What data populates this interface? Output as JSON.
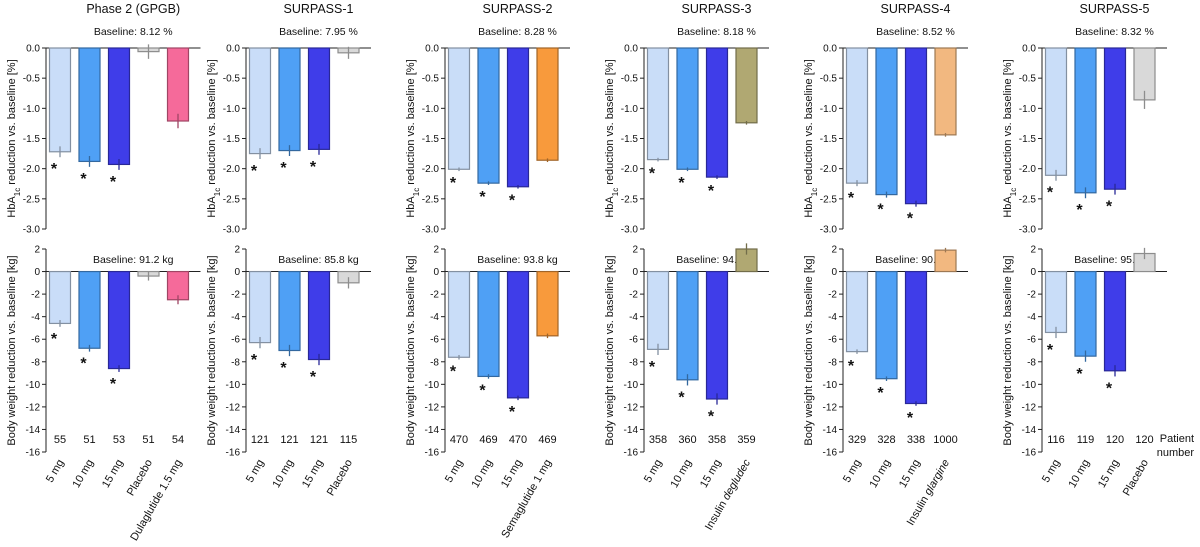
{
  "colors": {
    "tzp_5mg": "#c9ddf8",
    "tzp_10mg": "#4fa0f5",
    "tzp_15mg": "#3f3de9",
    "placebo": "#d9d9d9",
    "dulaglutide": "#f56a9a",
    "semaglutide": "#f89a3c",
    "degludec": "#b0a872",
    "glargine": "#f2b880"
  },
  "tick_labels": {
    "hba1c": [
      "0.0",
      "-0.5",
      "-1.0",
      "-1.5",
      "-2.0",
      "-2.5",
      "-3.0"
    ],
    "weight": [
      "2",
      "0",
      "-2",
      "-4",
      "-6",
      "-8",
      "-10",
      "-12",
      "-14",
      "-16"
    ]
  },
  "y_labels": {
    "hba1c_prefix": "HbA",
    "hba1c_sub": "1c",
    "hba1c_suffix": " reduction vs. baseline [%]",
    "weight": "Body weight reduction vs. baseline [kg]"
  },
  "patient_number_label": [
    "Patient",
    "number"
  ],
  "significance_marker": "*",
  "chart_data": [
    {
      "type": "bar",
      "title": "Phase 2 (GPGB)",
      "categories": [
        "5 mg",
        "10 mg",
        "15 mg",
        "Placebo",
        "Dulaglutide 1.5 mg"
      ],
      "category_colors": [
        "tzp_5mg",
        "tzp_10mg",
        "tzp_15mg",
        "placebo",
        "dulaglutide"
      ],
      "significant": [
        true,
        true,
        true,
        false,
        false
      ],
      "patient_numbers": [
        "55",
        "51",
        "53",
        "51",
        "54"
      ],
      "hba1c": {
        "baseline": "Baseline: 8.12 %",
        "values": [
          -1.72,
          -1.88,
          -1.93,
          -0.06,
          -1.21
        ],
        "errors": [
          0.09,
          0.09,
          0.09,
          0.12,
          0.12
        ],
        "ylim": [
          -3.0,
          0.0
        ]
      },
      "weight": {
        "baseline": "Baseline: 91.2 kg",
        "values": [
          -4.6,
          -6.8,
          -8.6,
          -0.4,
          -2.5
        ],
        "errors": [
          0.3,
          0.3,
          0.3,
          0.4,
          0.4
        ],
        "ylim": [
          -16,
          2
        ]
      }
    },
    {
      "type": "bar",
      "title": "SURPASS-1",
      "categories": [
        "5 mg",
        "10 mg",
        "15 mg",
        "Placebo"
      ],
      "category_colors": [
        "tzp_5mg",
        "tzp_10mg",
        "tzp_15mg",
        "placebo"
      ],
      "significant": [
        true,
        true,
        true,
        false
      ],
      "patient_numbers": [
        "121",
        "121",
        "121",
        "115"
      ],
      "hba1c": {
        "baseline": "Baseline: 7.95 %",
        "values": [
          -1.75,
          -1.7,
          -1.68,
          -0.08
        ],
        "errors": [
          0.09,
          0.09,
          0.09,
          0.1
        ],
        "ylim": [
          -3.0,
          0.0
        ]
      },
      "weight": {
        "baseline": "Baseline: 85.8 kg",
        "values": [
          -6.3,
          -7.0,
          -7.8,
          -1.0
        ],
        "errors": [
          0.5,
          0.5,
          0.5,
          0.5
        ],
        "ylim": [
          -16,
          2
        ]
      }
    },
    {
      "type": "bar",
      "title": "SURPASS-2",
      "categories": [
        "5 mg",
        "10 mg",
        "15 mg",
        "Semaglutide 1 mg"
      ],
      "category_colors": [
        "tzp_5mg",
        "tzp_10mg",
        "tzp_15mg",
        "semaglutide"
      ],
      "significant": [
        true,
        true,
        true,
        false
      ],
      "patient_numbers": [
        "470",
        "469",
        "470",
        "469"
      ],
      "hba1c": {
        "baseline": "Baseline: 8.28 %",
        "values": [
          -2.01,
          -2.24,
          -2.3,
          -1.86
        ],
        "errors": [
          0.03,
          0.03,
          0.03,
          0.03
        ],
        "ylim": [
          -3.0,
          0.0
        ]
      },
      "weight": {
        "baseline": "Baseline: 93.8 kg",
        "values": [
          -7.6,
          -9.3,
          -11.2,
          -5.7
        ],
        "errors": [
          0.2,
          0.2,
          0.2,
          0.2
        ],
        "ylim": [
          -16,
          2
        ]
      }
    },
    {
      "type": "bar",
      "title": "SURPASS-3",
      "categories": [
        "5 mg",
        "10 mg",
        "15 mg",
        "Insulin degludec"
      ],
      "category_colors": [
        "tzp_5mg",
        "tzp_10mg",
        "tzp_15mg",
        "degludec"
      ],
      "italic_from": [
        null,
        null,
        null,
        8
      ],
      "significant": [
        true,
        true,
        true,
        false
      ],
      "patient_numbers": [
        "358",
        "360",
        "358",
        "359"
      ],
      "hba1c": {
        "baseline": "Baseline: 8.18 %",
        "values": [
          -1.85,
          -2.01,
          -2.14,
          -1.24
        ],
        "errors": [
          0.03,
          0.03,
          0.03,
          0.03
        ],
        "ylim": [
          -3.0,
          0.0
        ]
      },
      "weight": {
        "baseline": "Baseline: 94.5 kg",
        "values": [
          -6.9,
          -9.6,
          -11.3,
          2.0
        ],
        "errors": [
          0.5,
          0.5,
          0.5,
          0.5
        ],
        "ylim": [
          -16,
          2
        ]
      }
    },
    {
      "type": "bar",
      "title": "SURPASS-4",
      "categories": [
        "5 mg",
        "10 mg",
        "15 mg",
        "Insulin glargine"
      ],
      "category_colors": [
        "tzp_5mg",
        "tzp_10mg",
        "tzp_15mg",
        "glargine"
      ],
      "italic_from": [
        null,
        null,
        null,
        8
      ],
      "significant": [
        true,
        true,
        true,
        false
      ],
      "patient_numbers": [
        "329",
        "328",
        "338",
        "1000"
      ],
      "hba1c": {
        "baseline": "Baseline: 8.52 %",
        "values": [
          -2.24,
          -2.43,
          -2.58,
          -1.44
        ],
        "errors": [
          0.05,
          0.05,
          0.05,
          0.03
        ],
        "ylim": [
          -3.0,
          0.0
        ]
      },
      "weight": {
        "baseline": "Baseline: 90.3 kg",
        "values": [
          -7.1,
          -9.5,
          -11.7,
          1.9
        ],
        "errors": [
          0.2,
          0.2,
          0.2,
          0.2
        ],
        "ylim": [
          -16,
          2
        ]
      }
    },
    {
      "type": "bar",
      "title": "SURPASS-5",
      "categories": [
        "5 mg",
        "10 mg",
        "15 mg",
        "Placebo"
      ],
      "category_colors": [
        "tzp_5mg",
        "tzp_10mg",
        "tzp_15mg",
        "placebo"
      ],
      "significant": [
        true,
        true,
        true,
        false
      ],
      "patient_numbers": [
        "116",
        "119",
        "120",
        "120"
      ],
      "hba1c": {
        "baseline": "Baseline: 8.32 %",
        "values": [
          -2.11,
          -2.4,
          -2.34,
          -0.86
        ],
        "errors": [
          0.09,
          0.09,
          0.09,
          0.15
        ],
        "ylim": [
          -3.0,
          0.0
        ]
      },
      "weight": {
        "baseline": "Baseline: 95.1 kg",
        "values": [
          -5.4,
          -7.5,
          -8.8,
          1.6
        ],
        "errors": [
          0.5,
          0.5,
          0.5,
          0.5
        ],
        "ylim": [
          -16,
          2
        ]
      }
    }
  ]
}
